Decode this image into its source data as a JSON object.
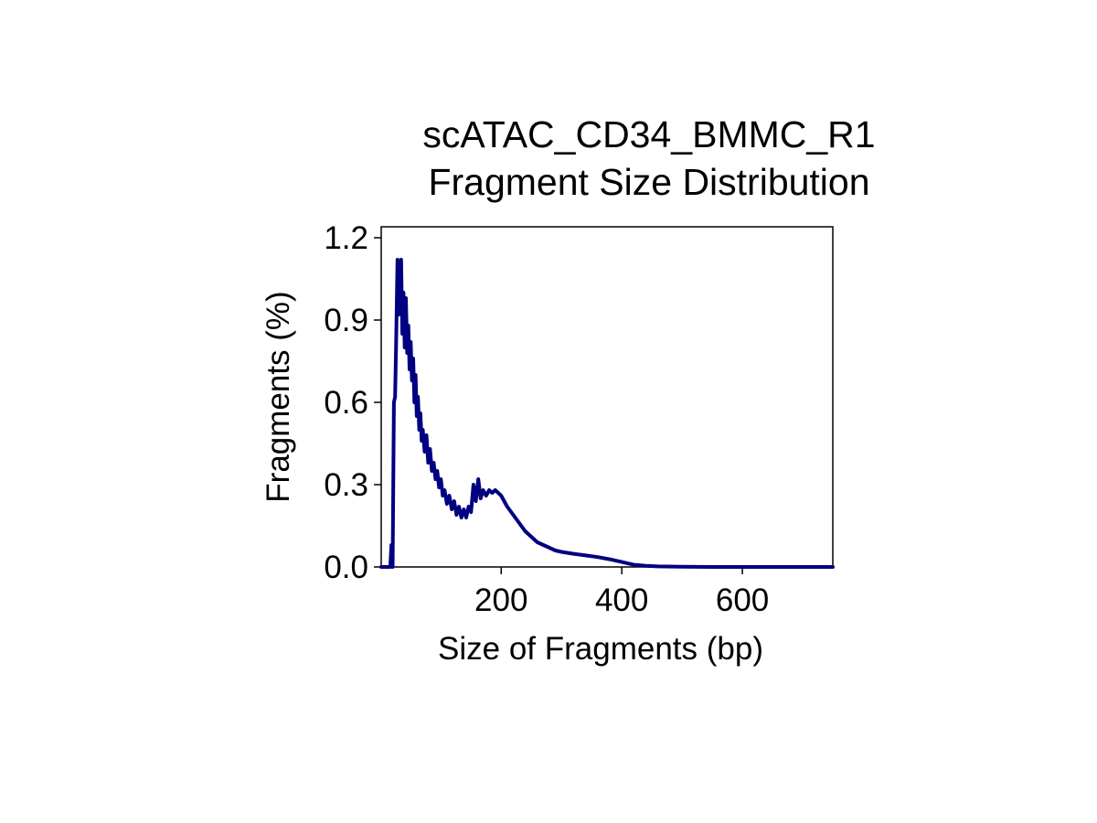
{
  "chart_data": {
    "type": "line",
    "title_line1": "scATAC_CD34_BMMC_R1",
    "title_line2": "Fragment Size Distribution",
    "xlabel": "Size of Fragments (bp)",
    "ylabel": "Fragments (%)",
    "xlim": [
      1,
      750
    ],
    "ylim": [
      0,
      1.24
    ],
    "xticks": [
      200,
      400,
      600
    ],
    "xtick_labels": [
      "200",
      "400",
      "600"
    ],
    "yticks": [
      0,
      0.3,
      0.6,
      0.9,
      1.2
    ],
    "ytick_labels": [
      "0.0",
      "0.3",
      "0.6",
      "0.9",
      "1.2"
    ],
    "grid": false,
    "line_color": "#000080",
    "series": [
      {
        "x": [
          1,
          16,
          18,
          20,
          21,
          22,
          24,
          26,
          28,
          30,
          32,
          34,
          36,
          38,
          40,
          42,
          44,
          46,
          48,
          50,
          52,
          54,
          56,
          58,
          60,
          62,
          64,
          66,
          68,
          70,
          73,
          76,
          79,
          82,
          85,
          88,
          91,
          94,
          97,
          100,
          103,
          106,
          110,
          114,
          118,
          122,
          126,
          130,
          134,
          138,
          142,
          146,
          150,
          154,
          158,
          162,
          166,
          170,
          175,
          180,
          185,
          190,
          195,
          200,
          205,
          210,
          220,
          230,
          240,
          250,
          260,
          270,
          280,
          290,
          300,
          320,
          340,
          360,
          380,
          400,
          420,
          440,
          460,
          500,
          550,
          600,
          650,
          700,
          750
        ],
        "values": [
          0.0,
          0.0,
          0.08,
          0.0,
          0.3,
          0.6,
          0.62,
          0.85,
          1.12,
          0.92,
          1.05,
          1.12,
          0.85,
          1.0,
          0.8,
          0.98,
          0.78,
          0.88,
          0.72,
          0.82,
          0.68,
          0.76,
          0.6,
          0.7,
          0.55,
          0.62,
          0.5,
          0.56,
          0.46,
          0.5,
          0.42,
          0.48,
          0.38,
          0.43,
          0.35,
          0.38,
          0.32,
          0.35,
          0.29,
          0.32,
          0.26,
          0.28,
          0.23,
          0.26,
          0.21,
          0.24,
          0.19,
          0.22,
          0.18,
          0.21,
          0.18,
          0.22,
          0.2,
          0.3,
          0.24,
          0.32,
          0.25,
          0.28,
          0.26,
          0.28,
          0.27,
          0.28,
          0.27,
          0.26,
          0.24,
          0.22,
          0.19,
          0.16,
          0.13,
          0.11,
          0.09,
          0.08,
          0.07,
          0.06,
          0.055,
          0.048,
          0.042,
          0.036,
          0.028,
          0.018,
          0.008,
          0.004,
          0.002,
          0.001,
          0.0,
          0.0,
          0.0,
          0.0,
          0.0
        ]
      }
    ]
  }
}
